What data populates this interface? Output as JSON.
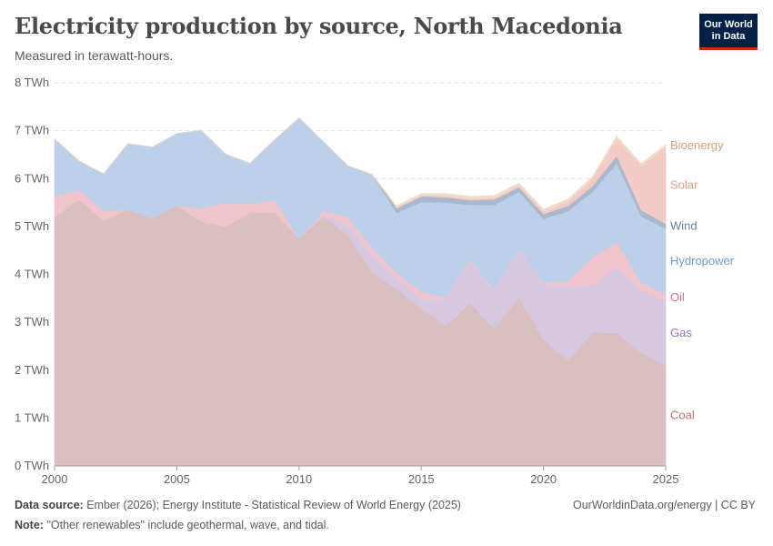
{
  "header": {
    "title": "Electricity production by source, North Macedonia",
    "subtitle": "Measured in terawatt-hours.",
    "logo_line1": "Our World",
    "logo_line2": "in Data"
  },
  "footer": {
    "source_label": "Data source:",
    "source_text": "Ember (2026); Energy Institute - Statistical Review of World Energy (2025)",
    "note_label": "Note:",
    "note_text": "\"Other renewables\" include geothermal, wave, and tidal.",
    "credit": "OurWorldinData.org/energy | CC BY"
  },
  "chart_data": {
    "type": "area",
    "stacked": true,
    "title": "Electricity production by source, North Macedonia",
    "ylabel": "TWh",
    "ylim": [
      0,
      8
    ],
    "xlim": [
      2000,
      2025
    ],
    "y_ticks": [
      0,
      1,
      2,
      3,
      4,
      5,
      6,
      7,
      8
    ],
    "y_tick_labels": [
      "0 TWh",
      "1 TWh",
      "2 TWh",
      "3 TWh",
      "4 TWh",
      "5 TWh",
      "6 TWh",
      "7 TWh",
      "8 TWh"
    ],
    "x_ticks": [
      2000,
      2005,
      2010,
      2015,
      2020,
      2025
    ],
    "x_tick_labels": [
      "2000",
      "2005",
      "2010",
      "2015",
      "2020",
      "2025"
    ],
    "grid": "horizontal dashed",
    "x": [
      2000,
      2001,
      2002,
      2003,
      2004,
      2005,
      2006,
      2007,
      2008,
      2009,
      2010,
      2011,
      2012,
      2013,
      2014,
      2015,
      2016,
      2017,
      2018,
      2019,
      2020,
      2021,
      2022,
      2023,
      2024,
      2025
    ],
    "series": [
      {
        "name": "Coal",
        "color": "#dbbec0",
        "label_color": "#c46a74",
        "values": [
          5.2,
          5.57,
          5.12,
          5.35,
          5.17,
          5.44,
          5.1,
          5.0,
          5.28,
          5.3,
          4.75,
          5.2,
          4.82,
          4.04,
          3.7,
          3.28,
          2.92,
          3.4,
          2.86,
          3.53,
          2.64,
          2.2,
          2.79,
          2.78,
          2.37,
          2.1
        ]
      },
      {
        "name": "Gas",
        "color": "#d7c8e2",
        "label_color": "#9a74b6",
        "values": [
          0,
          0,
          0,
          0,
          0,
          0,
          0,
          0,
          0,
          0,
          0,
          0.05,
          0.2,
          0.36,
          0.23,
          0.2,
          0.54,
          0.86,
          0.75,
          1.0,
          1.13,
          1.56,
          0.98,
          1.37,
          1.29,
          1.34
        ]
      },
      {
        "name": "Oil",
        "color": "#efc4cd",
        "label_color": "#d9728b",
        "values": [
          0.43,
          0.2,
          0.2,
          0.0,
          0.0,
          0.0,
          0.28,
          0.49,
          0.19,
          0.25,
          0.0,
          0.07,
          0.18,
          0.15,
          0.1,
          0.16,
          0.04,
          0.04,
          0.05,
          0.0,
          0.05,
          0.1,
          0.57,
          0.53,
          0.17,
          0.15
        ]
      },
      {
        "name": "Hydropower",
        "color": "#bcd0ea",
        "label_color": "#6f9bd1",
        "values": [
          1.2,
          0.6,
          0.78,
          1.38,
          1.49,
          1.5,
          1.63,
          1.02,
          0.85,
          1.26,
          2.52,
          1.45,
          1.07,
          1.53,
          1.25,
          1.87,
          2.0,
          1.15,
          1.79,
          1.2,
          1.34,
          1.46,
          1.38,
          1.64,
          1.38,
          1.37
        ]
      },
      {
        "name": "Wind",
        "color": "#a9b8cc",
        "label_color": "#6d7f98",
        "values": [
          0,
          0,
          0,
          0,
          0,
          0,
          0,
          0,
          0,
          0,
          0,
          0,
          0,
          0,
          0.1,
          0.12,
          0.11,
          0.1,
          0.12,
          0.09,
          0.1,
          0.11,
          0.12,
          0.16,
          0.13,
          0.1
        ]
      },
      {
        "name": "Solar",
        "color": "#f3cbc4",
        "label_color": "#eb9a8c",
        "values": [
          0,
          0,
          0,
          0,
          0,
          0,
          0,
          0,
          0,
          0,
          0,
          0,
          0,
          0.0,
          0.02,
          0.02,
          0.03,
          0.03,
          0.03,
          0.04,
          0.05,
          0.09,
          0.15,
          0.36,
          0.92,
          1.6
        ]
      },
      {
        "name": "Bioenergy",
        "color": "#efdcc6",
        "label_color": "#d9a074",
        "values": [
          0,
          0,
          0,
          0,
          0,
          0,
          0,
          0,
          0,
          0,
          0,
          0,
          0,
          0,
          0.03,
          0.04,
          0.05,
          0.05,
          0.05,
          0.05,
          0.05,
          0.05,
          0.05,
          0.05,
          0.05,
          0.05
        ]
      }
    ]
  }
}
